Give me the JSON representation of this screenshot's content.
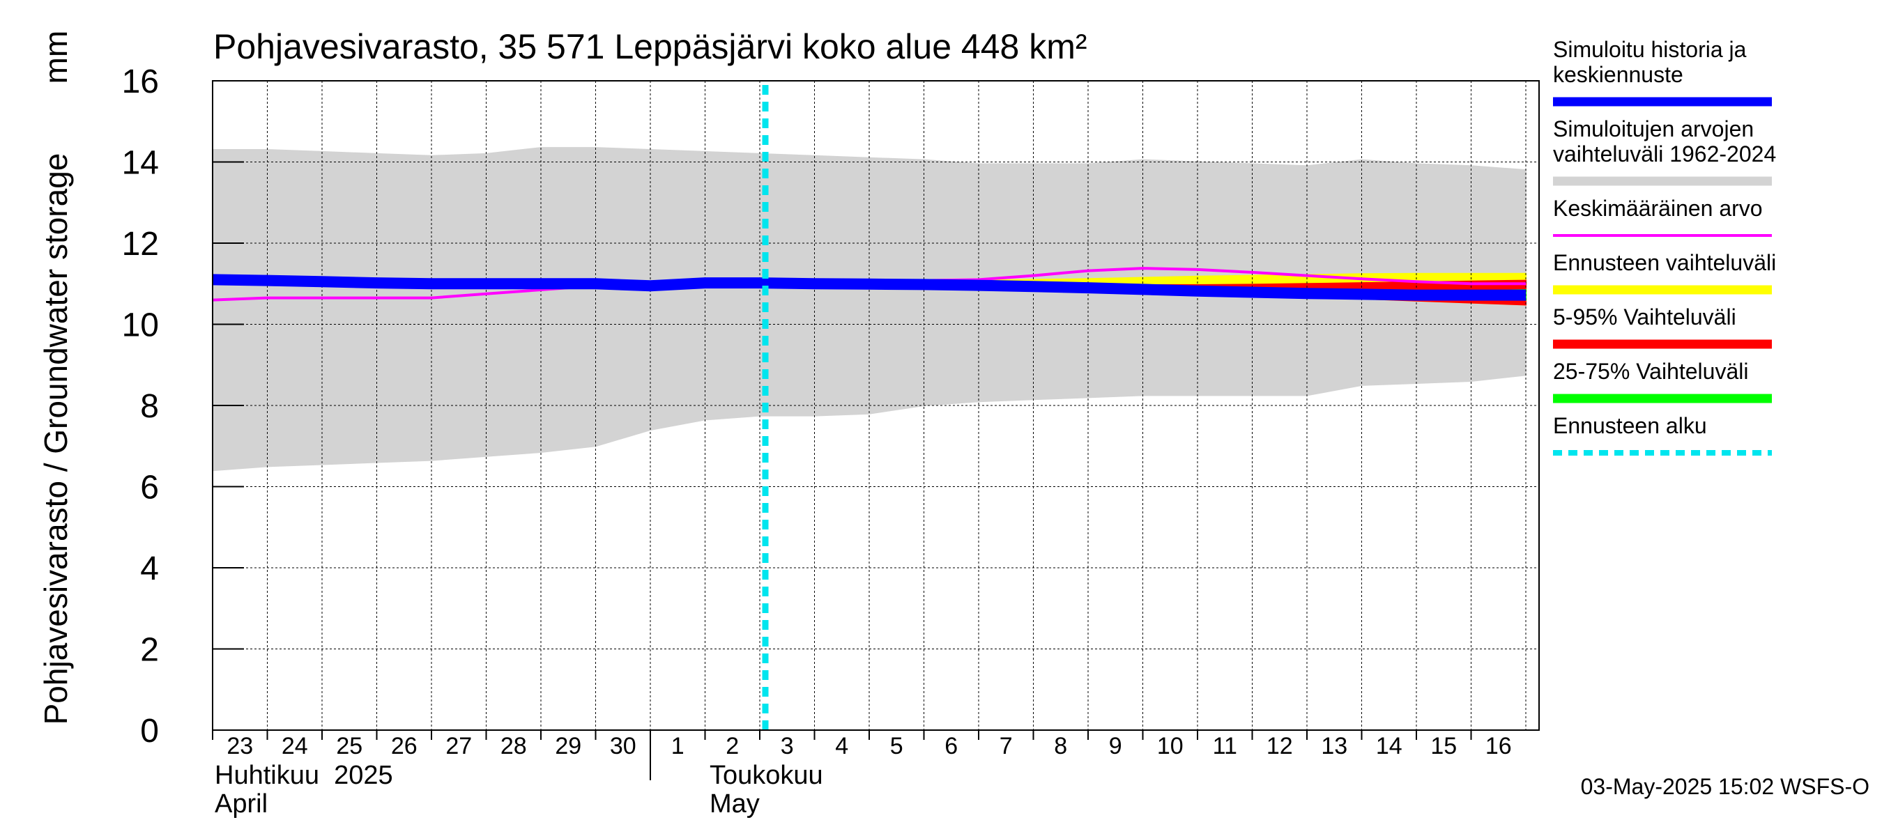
{
  "chart_data": {
    "type": "line",
    "title": "Pohjavesivarasto, 35 571 Leppäsjärvi koko alue 448 km²",
    "ylabel": "Pohjavesivarasto / Groundwater storage",
    "yunit": "mm",
    "ylim": [
      0,
      16
    ],
    "yticks": [
      0,
      2,
      4,
      6,
      8,
      10,
      12,
      14,
      16
    ],
    "x_range": [
      "2025-04-23",
      "2025-05-16"
    ],
    "x_day_labels": [
      "23",
      "24",
      "25",
      "26",
      "27",
      "28",
      "29",
      "30",
      "1",
      "2",
      "3",
      "4",
      "5",
      "6",
      "7",
      "8",
      "9",
      "10",
      "11",
      "12",
      "13",
      "14",
      "15",
      "16"
    ],
    "month_labels": [
      {
        "fi": "Huhtikuu  2025",
        "en": "April"
      },
      {
        "fi": "Toukokuu",
        "en": "May"
      }
    ],
    "grid": true,
    "legend_position": "right",
    "forecast_start": "2025-05-03",
    "dates": [
      "2025-04-23",
      "2025-04-24",
      "2025-04-25",
      "2025-04-26",
      "2025-04-27",
      "2025-04-28",
      "2025-04-29",
      "2025-04-30",
      "2025-05-01",
      "2025-05-02",
      "2025-05-03",
      "2025-05-04",
      "2025-05-05",
      "2025-05-06",
      "2025-05-07",
      "2025-05-08",
      "2025-05-09",
      "2025-05-10",
      "2025-05-11",
      "2025-05-12",
      "2025-05-13",
      "2025-05-14",
      "2025-05-15",
      "2025-05-16",
      "2025-05-17"
    ],
    "series": [
      {
        "name": "Simuloitujen arvojen vaihteluväli 1962-2024",
        "kind": "band",
        "color": "#d3d3d3",
        "upper": [
          14.3,
          14.3,
          14.25,
          14.2,
          14.15,
          14.2,
          14.35,
          14.35,
          14.3,
          14.25,
          14.2,
          14.15,
          14.1,
          14.05,
          13.95,
          13.95,
          13.95,
          14.05,
          14.0,
          13.95,
          13.9,
          14.05,
          13.95,
          13.9,
          13.8
        ],
        "lower": [
          6.4,
          6.5,
          6.55,
          6.6,
          6.65,
          6.75,
          6.85,
          7.0,
          7.4,
          7.65,
          7.75,
          7.75,
          7.8,
          8.0,
          8.1,
          8.15,
          8.2,
          8.25,
          8.25,
          8.25,
          8.25,
          8.5,
          8.55,
          8.6,
          8.75
        ]
      },
      {
        "name": "Ennusteen vaihteluväli",
        "kind": "band",
        "color": "#ffff00",
        "upper": [
          null,
          null,
          null,
          null,
          null,
          null,
          null,
          null,
          null,
          null,
          11.08,
          11.08,
          11.08,
          11.08,
          11.08,
          11.1,
          11.12,
          11.15,
          11.18,
          11.2,
          11.22,
          11.24,
          11.25,
          11.25,
          11.25
        ],
        "lower": [
          null,
          null,
          null,
          null,
          null,
          null,
          null,
          null,
          null,
          null,
          11.0,
          10.98,
          10.97,
          10.95,
          10.92,
          10.88,
          10.84,
          10.8,
          10.76,
          10.72,
          10.68,
          10.63,
          10.58,
          10.53,
          10.48
        ]
      },
      {
        "name": "5-95% Vaihteluväli",
        "kind": "band",
        "color": "#ff0000",
        "upper": [
          null,
          null,
          null,
          null,
          null,
          null,
          null,
          null,
          null,
          null,
          11.05,
          11.04,
          11.03,
          11.02,
          11.0,
          10.99,
          10.98,
          10.97,
          10.97,
          10.98,
          11.0,
          11.02,
          11.04,
          11.06,
          11.08
        ],
        "lower": [
          null,
          null,
          null,
          null,
          null,
          null,
          null,
          null,
          null,
          null,
          11.0,
          10.98,
          10.97,
          10.95,
          10.92,
          10.88,
          10.84,
          10.8,
          10.76,
          10.72,
          10.68,
          10.63,
          10.58,
          10.53,
          10.48
        ]
      },
      {
        "name": "25-75% Vaihteluväli",
        "kind": "band",
        "color": "#00ff00",
        "upper": [
          null,
          null,
          null,
          null,
          null,
          null,
          null,
          null,
          null,
          null,
          11.02,
          11.0,
          10.99,
          10.98,
          10.96,
          10.93,
          10.9,
          10.87,
          10.84,
          10.82,
          10.8,
          10.79,
          10.8,
          10.82,
          10.85
        ],
        "lower": [
          null,
          null,
          null,
          null,
          null,
          null,
          null,
          null,
          null,
          null,
          11.0,
          10.98,
          10.96,
          10.94,
          10.9,
          10.86,
          10.82,
          10.78,
          10.74,
          10.71,
          10.68,
          10.66,
          10.64,
          10.62,
          10.6
        ]
      },
      {
        "name": "Keskimääräinen arvo",
        "kind": "line",
        "color": "#ff00ff",
        "values": [
          10.6,
          10.65,
          10.65,
          10.65,
          10.65,
          10.75,
          10.85,
          10.95,
          11.0,
          11.05,
          11.05,
          11.05,
          11.05,
          11.08,
          11.1,
          11.2,
          11.32,
          11.38,
          11.35,
          11.28,
          11.2,
          11.12,
          11.05,
          11.0,
          11.0
        ]
      },
      {
        "name": "Simuloitu historia ja keskiennuste",
        "kind": "line",
        "color": "#0000ff",
        "values": [
          11.1,
          11.08,
          11.05,
          11.02,
          11.0,
          11.0,
          11.0,
          11.0,
          10.95,
          11.02,
          11.02,
          11.0,
          10.99,
          10.98,
          10.96,
          10.93,
          10.9,
          10.86,
          10.82,
          10.79,
          10.76,
          10.74,
          10.72,
          10.72,
          10.72
        ]
      }
    ],
    "legend": [
      {
        "label": "Simuloitu historia ja\nkeskiennuste",
        "color": "#0000ff",
        "style": "line"
      },
      {
        "label": "Simuloitujen arvojen\nvaihteluväli 1962-2024",
        "color": "#d3d3d3",
        "style": "line"
      },
      {
        "label": "Keskimääräinen arvo",
        "color": "#ff00ff",
        "style": "thin"
      },
      {
        "label": "Ennusteen vaihteluväli",
        "color": "#ffff00",
        "style": "line"
      },
      {
        "label": "5-95% Vaihteluväli",
        "color": "#ff0000",
        "style": "line"
      },
      {
        "label": "25-75% Vaihteluväli",
        "color": "#00ff00",
        "style": "line"
      },
      {
        "label": "Ennusteen alku",
        "color": "#00e5ee",
        "style": "dashed"
      }
    ],
    "footer": "03-May-2025 15:02 WSFS-O"
  }
}
